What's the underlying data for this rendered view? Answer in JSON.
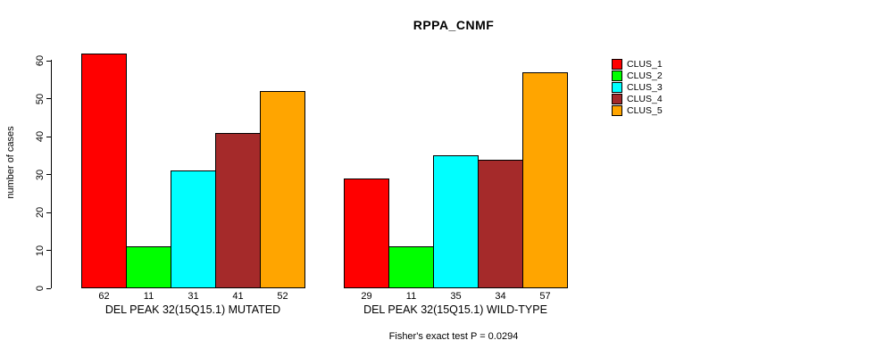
{
  "chart_data": {
    "type": "bar",
    "title": "RPPA_CNMF",
    "xlabel": "",
    "ylabel": "number of cases",
    "ylim": [
      0,
      60
    ],
    "yticks": [
      0,
      10,
      20,
      30,
      40,
      50,
      60
    ],
    "grid": false,
    "legend_position": "right",
    "bar_value_labels_shown": true,
    "categories": [
      "DEL PEAK 32(15Q15.1) MUTATED",
      "DEL PEAK 32(15Q15.1) WILD-TYPE"
    ],
    "series": [
      {
        "name": "CLUS_1",
        "color": "#FF0000",
        "values": [
          62,
          29
        ]
      },
      {
        "name": "CLUS_2",
        "color": "#00FF00",
        "values": [
          11,
          11
        ]
      },
      {
        "name": "CLUS_3",
        "color": "#00FFFF",
        "values": [
          31,
          35
        ]
      },
      {
        "name": "CLUS_4",
        "color": "#A52A2A",
        "values": [
          41,
          34
        ]
      },
      {
        "name": "CLUS_5",
        "color": "#FFA500",
        "values": [
          52,
          57
        ]
      }
    ],
    "annotation": "Fisher's exact test P = 0.0294"
  },
  "colors": {
    "background": "#FFFFFF",
    "axis": "#000000",
    "text": "#000000"
  }
}
